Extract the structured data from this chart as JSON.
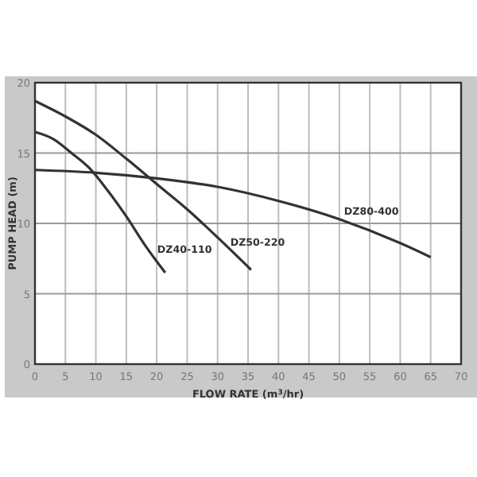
{
  "chart_data": {
    "type": "line",
    "xlabel": "FLOW RATE (m$^{3}$/hr)",
    "ylabel": "PUMP HEAD (m)",
    "xlim": [
      0,
      70
    ],
    "xticks": [
      0,
      5,
      10,
      15,
      20,
      25,
      30,
      35,
      40,
      45,
      50,
      55,
      60,
      65,
      70
    ],
    "ylim": [
      0,
      20
    ],
    "yticks": [
      0,
      5,
      10,
      15,
      20
    ],
    "grid": true,
    "marker": "none",
    "line_style": "solid",
    "series": [
      {
        "name": "DZ40-110",
        "color": "#333333",
        "x": [
          0,
          3,
          6,
          9,
          12,
          15,
          18,
          21.4
        ],
        "values": [
          16.5,
          16,
          15,
          13.9,
          12.3,
          10.5,
          8.5,
          6.5
        ]
      },
      {
        "name": "DZ50-220",
        "color": "#333333",
        "x": [
          0,
          5,
          10,
          15,
          20,
          25,
          30,
          35.5
        ],
        "values": [
          18.7,
          17.6,
          16.3,
          14.6,
          12.8,
          11,
          9,
          6.7
        ]
      },
      {
        "name": "DZ80-400",
        "color": "#333333",
        "x": [
          0,
          10,
          20,
          30,
          40,
          50,
          60,
          65
        ],
        "values": [
          13.8,
          13.6,
          13.2,
          12.6,
          11.6,
          10.3,
          8.6,
          7.6
        ]
      }
    ]
  }
}
